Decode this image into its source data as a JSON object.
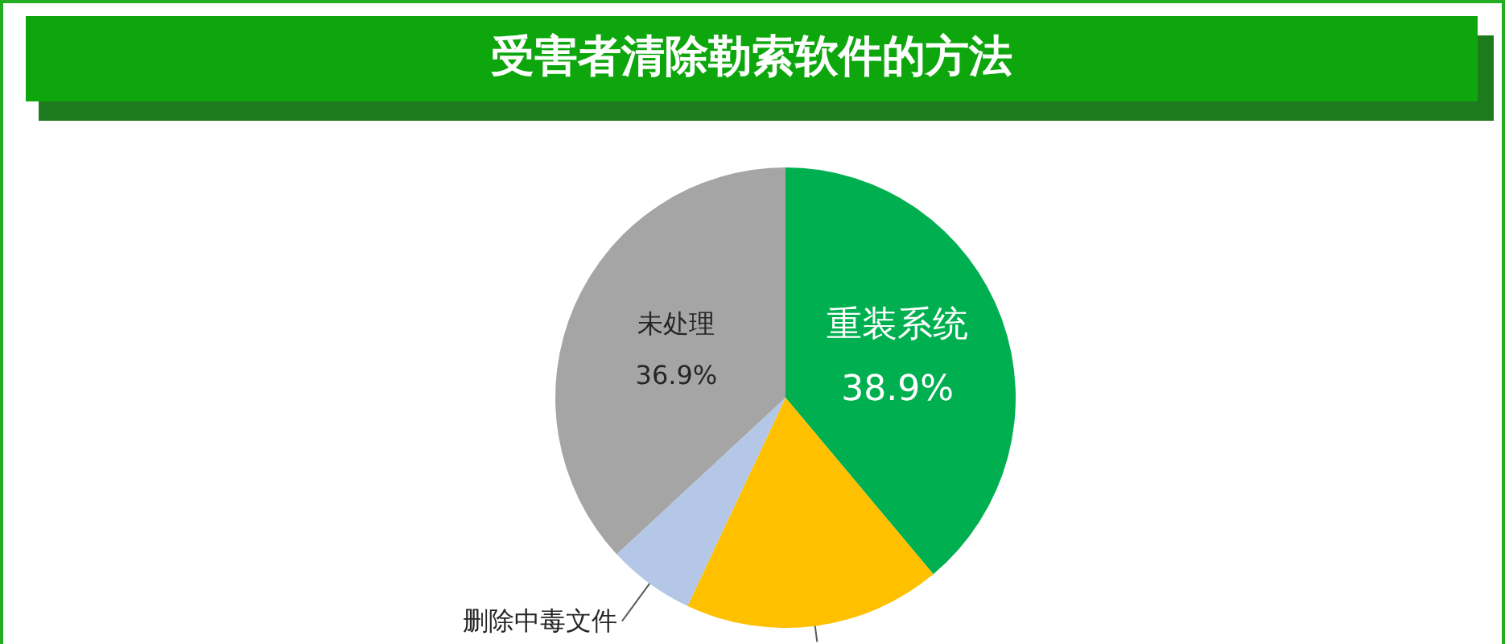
{
  "chart_data": {
    "type": "pie",
    "title": "受害者清除勒索软件的方法",
    "categories": [
      "重装系统",
      null,
      "删除中毒文件",
      "未处理"
    ],
    "values": [
      38.9,
      18.1,
      6.1,
      36.9
    ],
    "colors": [
      "#00b050",
      "#ffc000",
      "#b4c7e7",
      "#a5a5a5"
    ],
    "value_labels": [
      "38.9%",
      null,
      null,
      "36.9%"
    ]
  }
}
